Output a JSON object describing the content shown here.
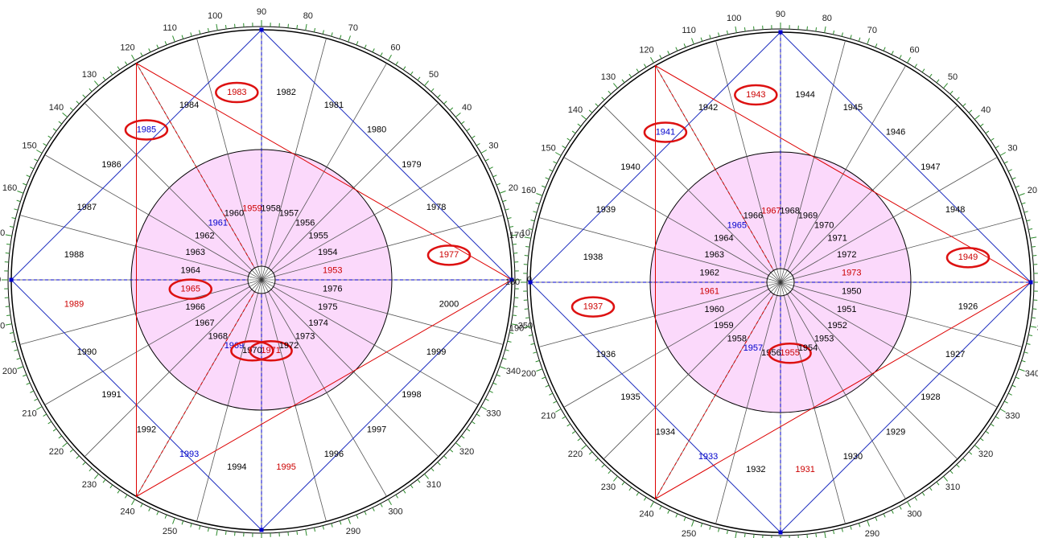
{
  "wheels": [
    {
      "degree_labels": [
        0,
        10,
        20,
        30,
        40,
        50,
        60,
        70,
        80,
        90,
        100,
        110,
        120,
        130,
        140,
        150,
        160,
        170,
        180,
        190,
        200,
        210,
        220,
        230,
        240,
        250,
        260,
        270,
        280,
        290,
        300,
        310,
        320,
        330,
        340,
        350
      ],
      "outer": [
        {
          "text": "1977",
          "color": "#cc0000",
          "circled": true
        },
        {
          "text": "1978",
          "color": "#000000"
        },
        {
          "text": "1979",
          "color": "#000000"
        },
        {
          "text": "1980",
          "color": "#000000"
        },
        {
          "text": "1981",
          "color": "#000000"
        },
        {
          "text": "1982",
          "color": "#000000"
        },
        {
          "text": "1983",
          "color": "#cc0000",
          "circled": true
        },
        {
          "text": "1984",
          "color": "#000000"
        },
        {
          "text": "1985",
          "color": "#0000cc",
          "circled": true
        },
        {
          "text": "1986",
          "color": "#000000"
        },
        {
          "text": "1987",
          "color": "#000000"
        },
        {
          "text": "1988",
          "color": "#000000"
        },
        {
          "text": "1989",
          "color": "#cc0000"
        },
        {
          "text": "1990",
          "color": "#000000"
        },
        {
          "text": "1991",
          "color": "#000000"
        },
        {
          "text": "1992",
          "color": "#000000"
        },
        {
          "text": "1993",
          "color": "#0000cc"
        },
        {
          "text": "1994",
          "color": "#000000"
        },
        {
          "text": "1995",
          "color": "#cc0000"
        },
        {
          "text": "1996",
          "color": "#000000"
        },
        {
          "text": "1997",
          "color": "#000000"
        },
        {
          "text": "1998",
          "color": "#000000"
        },
        {
          "text": "1999",
          "color": "#000000"
        },
        {
          "text": "2000",
          "color": "#000000"
        }
      ],
      "inner": [
        {
          "text": "1953",
          "color": "#cc0000"
        },
        {
          "text": "1954",
          "color": "#000000"
        },
        {
          "text": "1955",
          "color": "#000000"
        },
        {
          "text": "1956",
          "color": "#000000"
        },
        {
          "text": "1957",
          "color": "#000000"
        },
        {
          "text": "1958",
          "color": "#000000"
        },
        {
          "text": "1959",
          "color": "#cc0000"
        },
        {
          "text": "1960",
          "color": "#000000"
        },
        {
          "text": "1961",
          "color": "#0000cc"
        },
        {
          "text": "1962",
          "color": "#000000"
        },
        {
          "text": "1963",
          "color": "#000000"
        },
        {
          "text": "1964",
          "color": "#000000"
        },
        {
          "text": "1965",
          "color": "#cc0000",
          "circled": true
        },
        {
          "text": "1966",
          "color": "#000000"
        },
        {
          "text": "1967",
          "color": "#000000"
        },
        {
          "text": "1968",
          "color": "#000000"
        },
        {
          "text": "1969",
          "color": "#0000cc"
        },
        {
          "text": "1970",
          "color": "#000000",
          "circled": true
        },
        {
          "text": "1971",
          "color": "#cc0000",
          "circled": true
        },
        {
          "text": "1972",
          "color": "#000000"
        },
        {
          "text": "1973",
          "color": "#000000"
        },
        {
          "text": "1974",
          "color": "#000000"
        },
        {
          "text": "1975",
          "color": "#000000"
        },
        {
          "text": "1976",
          "color": "#000000"
        }
      ]
    },
    {
      "degree_labels": [
        0,
        10,
        20,
        30,
        40,
        50,
        60,
        70,
        80,
        90,
        100,
        110,
        120,
        130,
        140,
        150,
        160,
        170,
        180,
        190,
        200,
        210,
        220,
        230,
        240,
        250,
        260,
        270,
        280,
        290,
        300,
        310,
        320,
        330,
        340,
        350
      ],
      "outer": [
        {
          "text": "1949",
          "color": "#cc0000",
          "circled": true
        },
        {
          "text": "1948",
          "color": "#000000"
        },
        {
          "text": "1947",
          "color": "#000000"
        },
        {
          "text": "1946",
          "color": "#000000"
        },
        {
          "text": "1945",
          "color": "#000000"
        },
        {
          "text": "1944",
          "color": "#000000"
        },
        {
          "text": "1943",
          "color": "#cc0000",
          "circled": true
        },
        {
          "text": "1942",
          "color": "#000000"
        },
        {
          "text": "1941",
          "color": "#0000cc",
          "circled": true
        },
        {
          "text": "1940",
          "color": "#000000"
        },
        {
          "text": "1939",
          "color": "#000000"
        },
        {
          "text": "1938",
          "color": "#000000"
        },
        {
          "text": "1937",
          "color": "#cc0000",
          "circled": true
        },
        {
          "text": "1936",
          "color": "#000000"
        },
        {
          "text": "1935",
          "color": "#000000"
        },
        {
          "text": "1934",
          "color": "#000000"
        },
        {
          "text": "1933",
          "color": "#0000cc"
        },
        {
          "text": "1932",
          "color": "#000000"
        },
        {
          "text": "1931",
          "color": "#cc0000"
        },
        {
          "text": "1930",
          "color": "#000000"
        },
        {
          "text": "1929",
          "color": "#000000"
        },
        {
          "text": "1928",
          "color": "#000000"
        },
        {
          "text": "1927",
          "color": "#000000"
        },
        {
          "text": "1926",
          "color": "#000000"
        }
      ],
      "inner": [
        {
          "text": "1973",
          "color": "#cc0000"
        },
        {
          "text": "1972",
          "color": "#000000"
        },
        {
          "text": "1971",
          "color": "#000000"
        },
        {
          "text": "1970",
          "color": "#000000"
        },
        {
          "text": "1969",
          "color": "#000000"
        },
        {
          "text": "1968",
          "color": "#000000"
        },
        {
          "text": "1967",
          "color": "#cc0000"
        },
        {
          "text": "1966",
          "color": "#000000"
        },
        {
          "text": "1965",
          "color": "#0000cc"
        },
        {
          "text": "1964",
          "color": "#000000"
        },
        {
          "text": "1963",
          "color": "#000000"
        },
        {
          "text": "1962",
          "color": "#000000"
        },
        {
          "text": "1961",
          "color": "#cc0000"
        },
        {
          "text": "1960",
          "color": "#000000"
        },
        {
          "text": "1959",
          "color": "#000000"
        },
        {
          "text": "1958",
          "color": "#000000"
        },
        {
          "text": "1957",
          "color": "#0000cc"
        },
        {
          "text": "1956",
          "color": "#000000"
        },
        {
          "text": "1955",
          "color": "#cc0000",
          "circled": true
        },
        {
          "text": "1954",
          "color": "#000000"
        },
        {
          "text": "1953",
          "color": "#000000"
        },
        {
          "text": "1952",
          "color": "#000000"
        },
        {
          "text": "1951",
          "color": "#000000"
        },
        {
          "text": "1950",
          "color": "#000000"
        }
      ]
    }
  ]
}
